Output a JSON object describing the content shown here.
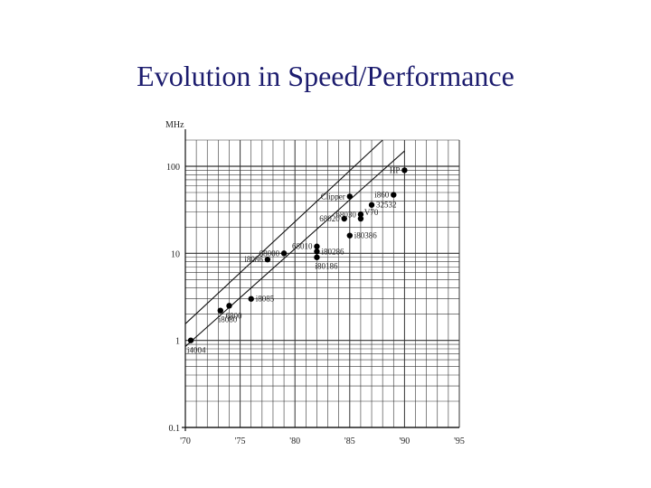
{
  "slide": {
    "title": "Evolution in Speed/Performance"
  },
  "chart_data": {
    "type": "scatter",
    "title": "Evolution in Speed/Performance",
    "xlabel": "",
    "ylabel": "MHz",
    "yscale": "log",
    "xlim": [
      1970,
      1995
    ],
    "ylim": [
      0.1,
      200
    ],
    "grid": true,
    "x_tick_labels": [
      {
        "value": 1970,
        "label": "'70"
      },
      {
        "value": 1975,
        "label": "'75"
      },
      {
        "value": 1980,
        "label": "'80"
      },
      {
        "value": 1985,
        "label": "'85"
      },
      {
        "value": 1990,
        "label": "'90"
      },
      {
        "value": 1995,
        "label": "'95"
      }
    ],
    "y_tick_labels": [
      {
        "value": 100,
        "label": "100"
      },
      {
        "value": 10,
        "label": "10"
      },
      {
        "value": 1,
        "label": "1"
      },
      {
        "value": 0.1,
        "label": "0.1"
      }
    ],
    "points": [
      {
        "name": "i4004",
        "x": 1970.5,
        "y": 1.0
      },
      {
        "name": "i8080",
        "x": 1973.2,
        "y": 2.2
      },
      {
        "name": "6800",
        "x": 1974.0,
        "y": 2.5
      },
      {
        "name": "i8085",
        "x": 1976.0,
        "y": 3.0
      },
      {
        "name": "i8086",
        "x": 1977.5,
        "y": 8.5
      },
      {
        "name": "68000",
        "x": 1979.0,
        "y": 10.0
      },
      {
        "name": "68010",
        "x": 1982.0,
        "y": 12.0
      },
      {
        "name": "i80186",
        "x": 1982.0,
        "y": 9.0
      },
      {
        "name": "i80286",
        "x": 1982.0,
        "y": 10.5
      },
      {
        "name": "68020",
        "x": 1984.5,
        "y": 25.0
      },
      {
        "name": "V70",
        "x": 1986.0,
        "y": 25.0
      },
      {
        "name": "i80386",
        "x": 1985.0,
        "y": 16.0
      },
      {
        "name": "68030",
        "x": 1986.0,
        "y": 28.0
      },
      {
        "name": "Clipper",
        "x": 1985.0,
        "y": 45.0
      },
      {
        "name": "32532",
        "x": 1987.0,
        "y": 36.0
      },
      {
        "name": "i860",
        "x": 1989.0,
        "y": 47.0
      },
      {
        "name": "HP",
        "x": 1990.0,
        "y": 90.0
      }
    ],
    "trend_lines": [
      {
        "name": "upper",
        "from": [
          1970,
          1.55
        ],
        "to": [
          1988,
          200
        ]
      },
      {
        "name": "lower",
        "from": [
          1970,
          0.85
        ],
        "to": [
          1990,
          150
        ]
      }
    ]
  }
}
